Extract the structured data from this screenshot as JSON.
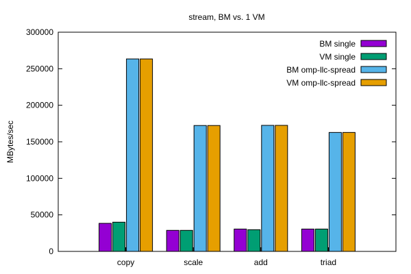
{
  "chart_data": {
    "type": "bar",
    "title": "stream, BM vs. 1 VM",
    "xlabel": "",
    "ylabel": "MBytes/sec",
    "ylim": [
      0,
      300000
    ],
    "yticks": [
      0,
      50000,
      100000,
      150000,
      200000,
      250000,
      300000
    ],
    "categories": [
      "copy",
      "scale",
      "add",
      "triad"
    ],
    "legend_position": "top-right",
    "series": [
      {
        "name": "BM single",
        "color": "#9400d3",
        "values": [
          38400,
          28800,
          30600,
          30600
        ]
      },
      {
        "name": "VM single",
        "color": "#009e73",
        "values": [
          40000,
          28800,
          29700,
          30600
        ]
      },
      {
        "name": "BM omp-llc-spread",
        "color": "#56b4e9",
        "values": [
          263400,
          172300,
          172500,
          162800
        ]
      },
      {
        "name": "VM omp-llc-spread",
        "color": "#e69f00",
        "values": [
          263400,
          172300,
          172500,
          162800
        ]
      }
    ]
  }
}
